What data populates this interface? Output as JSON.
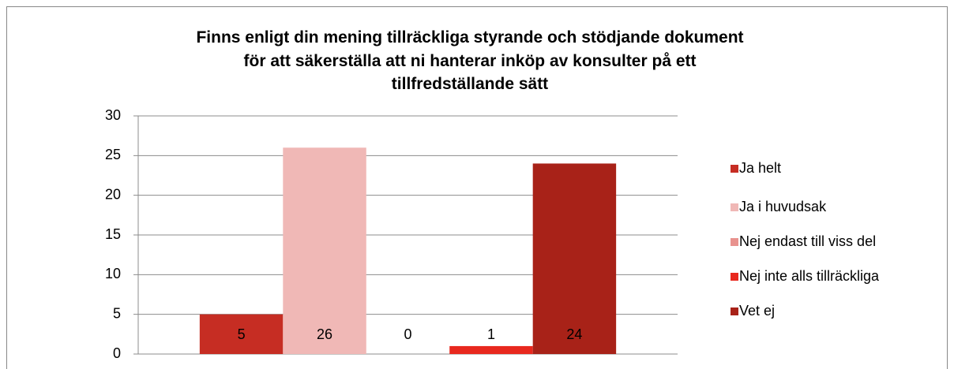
{
  "chart_data": {
    "type": "bar",
    "title": "Finns enligt din mening tillräckliga styrande och stödjande dokument\nför att säkerställa att ni hanterar inköp av konsulter på ett\ntillfredställande sätt",
    "categories": [
      null
    ],
    "series": [
      {
        "name": "Ja helt",
        "color": "#c62d23",
        "values": [
          5
        ]
      },
      {
        "name": "Ja i huvudsak",
        "color": "#f0b8b6",
        "values": [
          26
        ]
      },
      {
        "name": "Nej endast till viss del",
        "color": "#e8928e",
        "values": [
          0
        ]
      },
      {
        "name": "Nej inte alls tillräckliga",
        "color": "#e8281e",
        "values": [
          1
        ]
      },
      {
        "name": "Vet ej",
        "color": "#a82218",
        "values": [
          24
        ]
      }
    ],
    "ylim": [
      0,
      30
    ],
    "yticks": [
      0,
      5,
      10,
      15,
      20,
      25,
      30
    ],
    "grid": true,
    "legend": "right"
  }
}
